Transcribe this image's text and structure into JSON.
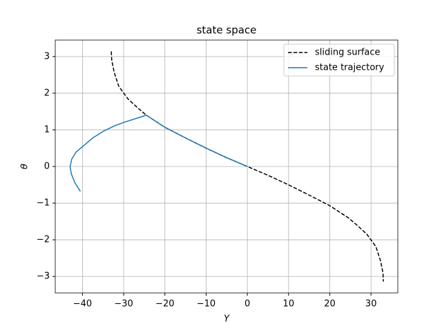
{
  "chart_data": {
    "type": "line",
    "title": "state space",
    "x_label": "Y",
    "y_label": "θ",
    "xlim": [
      -46.6,
      36.5
    ],
    "ylim": [
      -3.45,
      3.45
    ],
    "xticks": [
      {
        "value": -40,
        "label": "−40"
      },
      {
        "value": -30,
        "label": "−30"
      },
      {
        "value": -20,
        "label": "−20"
      },
      {
        "value": -10,
        "label": "−10"
      },
      0,
      10,
      20,
      30
    ],
    "yticks": [
      {
        "value": -3,
        "label": "−3"
      },
      {
        "value": -2,
        "label": "−2"
      },
      {
        "value": -1,
        "label": "−1"
      },
      0,
      1,
      2,
      3
    ],
    "grid": true,
    "legend": "upper right",
    "series": [
      {
        "name": "sliding surface",
        "color": "#000000",
        "dash": true,
        "x": [
          -33,
          -32.9,
          -32.3,
          -31.2,
          -29,
          -26.5,
          -24.5,
          -20,
          -15,
          -10,
          -5,
          0,
          5,
          10,
          15,
          20,
          24.5,
          26.5,
          29,
          31.2,
          32.3,
          32.9,
          33
        ],
        "values": [
          3.14,
          2.9,
          2.57,
          2.19,
          1.85,
          1.59,
          1.4,
          1.07,
          0.78,
          0.5,
          0.24,
          0,
          -0.24,
          -0.5,
          -0.78,
          -1.07,
          -1.4,
          -1.59,
          -1.85,
          -2.19,
          -2.57,
          -2.9,
          -3.14
        ]
      },
      {
        "name": "state trajectory",
        "color": "#1f77b4",
        "dash": false,
        "x": [
          -40.5,
          -41.8,
          -42.7,
          -43,
          -42.6,
          -41.5,
          -39.9,
          -37.5,
          -34.8,
          -32,
          -29.8,
          -27,
          -24.5,
          -20,
          -15,
          -10,
          -5,
          0
        ],
        "values": [
          -0.68,
          -0.45,
          -0.2,
          0,
          0.2,
          0.4,
          0.55,
          0.78,
          0.97,
          1.12,
          1.21,
          1.31,
          1.4,
          1.07,
          0.78,
          0.5,
          0.24,
          0
        ]
      }
    ]
  }
}
